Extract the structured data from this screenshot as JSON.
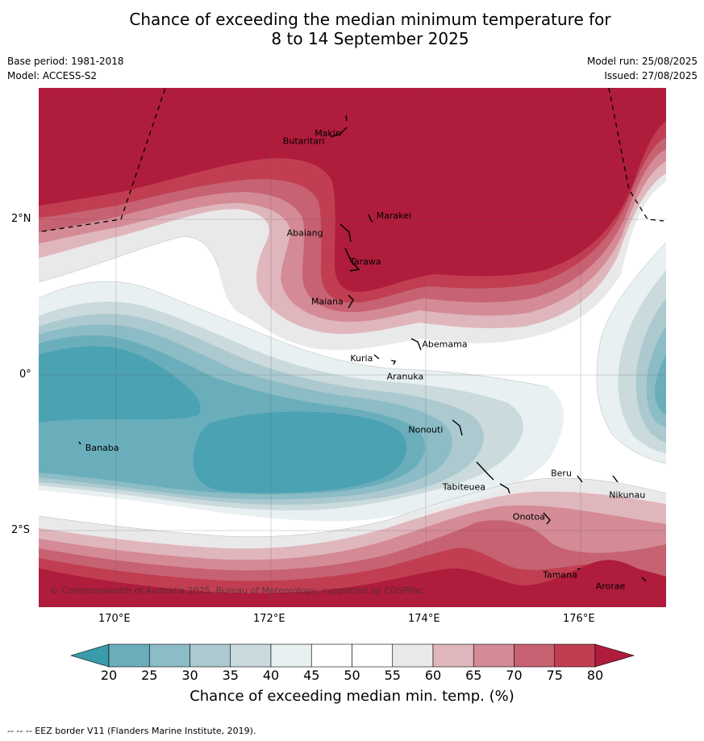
{
  "title": {
    "line1": "Chance of exceeding the median minimum temperature for",
    "line2": "8 to 14 September 2025"
  },
  "meta_left": {
    "base_period": "Base period: 1981-2018",
    "model": "Model: ACCESS-S2"
  },
  "meta_right": {
    "model_run": "Model run: 25/08/2025",
    "issued": "Issued: 27/08/2025"
  },
  "latitude_labels": [
    "2°N",
    "0°",
    "2°S"
  ],
  "longitude_labels": [
    "170°E",
    "172°E",
    "174°E",
    "176°E"
  ],
  "places": [
    {
      "name": "Makin",
      "lon": 172.95,
      "lat": 3.15
    },
    {
      "name": "Butaritari",
      "lon": 172.8,
      "lat": 3.05
    },
    {
      "name": "Marakei",
      "lon": 173.3,
      "lat": 2.0
    },
    {
      "name": "Abaiang",
      "lon": 172.85,
      "lat": 1.85
    },
    {
      "name": "Tarawa",
      "lon": 173.0,
      "lat": 1.4
    },
    {
      "name": "Maiana",
      "lon": 173.0,
      "lat": 0.95
    },
    {
      "name": "Abemama",
      "lon": 173.9,
      "lat": 0.4
    },
    {
      "name": "Kuria",
      "lon": 173.4,
      "lat": 0.22
    },
    {
      "name": "Aranuka",
      "lon": 173.6,
      "lat": 0.17
    },
    {
      "name": "Banaba",
      "lon": 169.55,
      "lat": -0.87
    },
    {
      "name": "Nonouti",
      "lon": 174.4,
      "lat": -0.65
    },
    {
      "name": "Tabiteuea",
      "lon": 174.8,
      "lat": -1.3
    },
    {
      "name": "Beru",
      "lon": 175.97,
      "lat": -1.3
    },
    {
      "name": "Nikunau",
      "lon": 176.45,
      "lat": -1.35
    },
    {
      "name": "Onotoa",
      "lon": 175.55,
      "lat": -1.8
    },
    {
      "name": "Tamana",
      "lon": 175.98,
      "lat": -2.5
    },
    {
      "name": "Arorae",
      "lon": 176.82,
      "lat": -2.65
    }
  ],
  "copyright": "© Commonwealth of Australia 2025, Bureau of Meteorology, supported by COSPPac",
  "colorbar": {
    "ticks": [
      "20",
      "25",
      "30",
      "35",
      "40",
      "45",
      "50",
      "55",
      "60",
      "65",
      "70",
      "75",
      "80"
    ],
    "colors": [
      "#3a9bab",
      "#6aaebb",
      "#8cbcc6",
      "#abc9cf",
      "#cadadd",
      "#e9f0f2",
      "#ffffff",
      "#ffffff",
      "#eae9e9",
      "#e0b6bd",
      "#d48b96",
      "#c76272",
      "#c13e52",
      "#b01c3b"
    ],
    "label": "Chance of exceeding median min. temp. (%)"
  },
  "footer": "-- -- -- EEZ border V11 (Flanders Marine Institute, 2019)."
}
